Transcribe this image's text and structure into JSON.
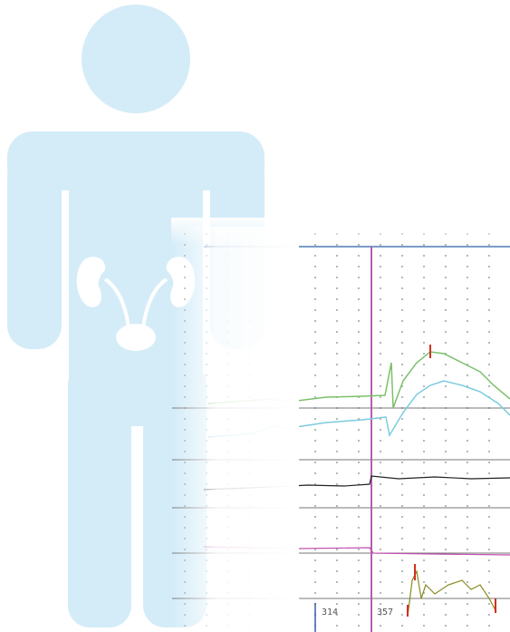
{
  "trace_panel": {
    "markers": [
      "314",
      "357"
    ]
  }
}
